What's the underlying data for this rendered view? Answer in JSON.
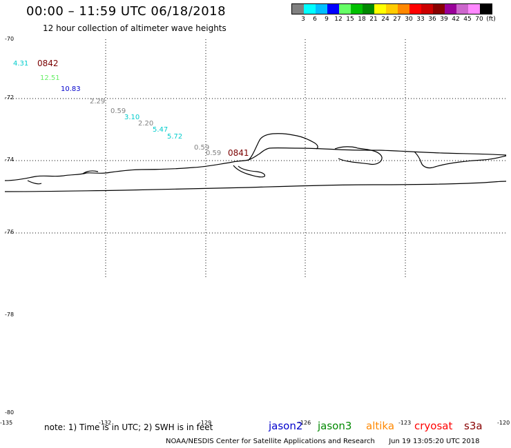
{
  "title": "00:00 – 11:59 UTC 06/18/2018",
  "subtitle": "12 hour collection of altimeter wave heights",
  "colorbar": {
    "colors": [
      "#808080",
      "#00ffff",
      "#00bfff",
      "#0000ff",
      "#66ff66",
      "#00c000",
      "#008800",
      "#ffff00",
      "#ffcc00",
      "#ff8800",
      "#ff0000",
      "#cc0000",
      "#880000",
      "#990099",
      "#cc66cc",
      "#ff88ff",
      "#000000"
    ],
    "labels": [
      "3",
      "6",
      "9",
      "12",
      "15",
      "18",
      "21",
      "24",
      "27",
      "30",
      "33",
      "36",
      "39",
      "42",
      "45",
      "70",
      "(ft)"
    ]
  },
  "lat_labels": [
    "-70",
    "-72",
    "-74",
    "-76",
    "-78",
    "-80"
  ],
  "lon_labels": [
    "-135",
    "-132",
    "-129",
    "-126",
    "-123",
    "-120"
  ],
  "wave_heights": [
    {
      "text": "4.31",
      "color": "#00cccc"
    },
    {
      "text": "12.51",
      "color": "#66ee66"
    },
    {
      "text": "10.83",
      "color": "#0000cc"
    },
    {
      "text": "2.29",
      "color": "#808080"
    },
    {
      "text": "0.59",
      "color": "#808080"
    },
    {
      "text": "3.10",
      "color": "#00cccc"
    },
    {
      "text": "2.20",
      "color": "#808080"
    },
    {
      "text": "5.47",
      "color": "#00cccc"
    },
    {
      "text": "5.72",
      "color": "#00cccc"
    },
    {
      "text": "0.59",
      "color": "#808080"
    },
    {
      "text": "0.59",
      "color": "#808080"
    }
  ],
  "time_labels": [
    "0842",
    "0841"
  ],
  "note": "note: 1) Time is in UTC; 2) SWH is in feet",
  "satellites": [
    {
      "name": "jason2",
      "color": "#0000cc"
    },
    {
      "name": "jason3",
      "color": "#008800"
    },
    {
      "name": "altika",
      "color": "#ff8800"
    },
    {
      "name": "cryosat",
      "color": "#ff0000"
    },
    {
      "name": "s3a",
      "color": "#880000"
    }
  ],
  "credit": "NOAA/NESDIS Center for Satellite Applications and Research",
  "timestamp": "Jun 19 13:05:20 UTC 2018"
}
